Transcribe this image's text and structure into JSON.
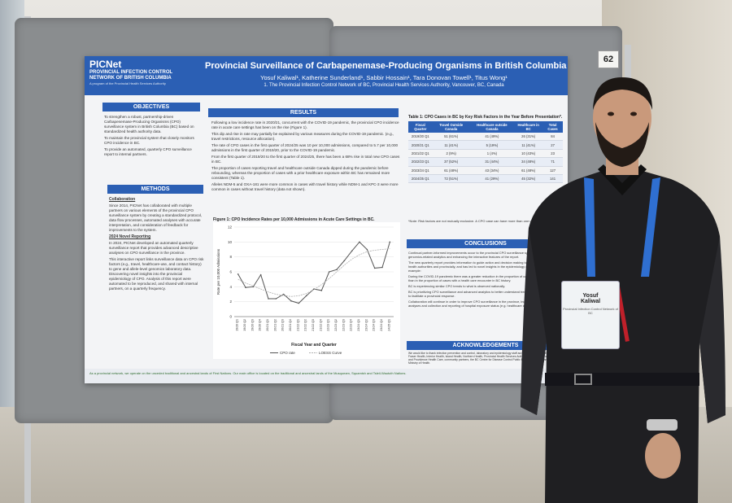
{
  "scene": {
    "board_number": "62"
  },
  "poster": {
    "logo": {
      "name": "PICNet",
      "line1": "PROVINCIAL INFECTION CONTROL",
      "line2": "NETWORK OF BRITISH COLUMBIA",
      "tag": "A program of the Provincial Health Services Authority"
    },
    "title": "Provincial Surveillance of Carbapenemase-Producing Organisms in British Columbia",
    "authors": "Yosuf Kaliwal¹, Katherine Sunderland¹, Sabbir Hossain¹, Tara Donovan Towell¹, Titus Wong¹",
    "affiliation": "1. The Provincial Infection Control Network of BC, Provincial Health Services Authority, Vancouver, BC, Canada",
    "objectives": {
      "heading": "OBJECTIVES",
      "items": [
        "To strengthen a robust, partnership-driven Carbapenemase-Producing Organisms (CPO) surveillance system in British Columbia (BC) based on standardized health authority data.",
        "To maintain the provincial system that closely monitors CPO incidence in BC.",
        "To provide an automated, quarterly CPO surveillance report to internal partners."
      ]
    },
    "methods": {
      "heading": "METHODS",
      "collab_head": "Collaboration",
      "collab_text": "Since 2014, PICNet has collaborated with multiple partners on various elements of the provincial CPO surveillance system by creating a standardized protocol, data flow processes, automated analyses with accurate interpretation, and consideration of feedback for improvements to the system.",
      "report_head": "2024 Novel Reporting",
      "report_text1": "In 2024, PICNet developed an automated quarterly surveillance report that provides advanced descriptive analyses on CPO surveillance in the province.",
      "report_text2": "This interactive report links surveillance data on CPO risk factors (e.g., travel, healthcare-use, and contact history) to gene and allele-level genomics laboratory data. Discovering novel insights into the provincial epidemiology of CPO. Analysis of this report were automated to be reproduced, and shared with internal partners, on a quarterly frequency."
    },
    "results": {
      "heading": "RESULTS",
      "items": [
        "Following a low incidence rate in 2020/21, concurrent with the COVID-19 pandemic, the provincial CPO incidence rate in acute care settings has been on the rise (Figure 1).",
        "This dip and rise in rate may partially be explained by various measures during the COVID-19 pandemic. (e.g., travel restrictions, resource allocation).",
        "The rate of CPO cases in the first quarter of 2024/25 was 10 per 10,000 admissions, compared to 5.7 per 10,000 admissions in the first quarter of 2019/20, prior to the COVID-19 pandemic.",
        "From the first quarter of 2019/20 to the first quarter of 2024/25, there has been a 68% rise in total new CPO cases in BC.",
        "The proportion of cases reporting travel and healthcare outside Canada dipped during the pandemic before rebounding, whereas the proportion of cases with a prior healthcare exposure within BC has remained more consistent (Table 1).",
        "Alleles NDM-5 and OXA-181 were more common in cases with travel history while NDM-1 and KPC-3 were more common in cases without travel history (data not shown)."
      ]
    },
    "figure_title": "Figure 1: CPO Incidence Rates per 10,000 Admissions in Acute Care Settings in BC.",
    "table": {
      "title": "Table 1: CPO Cases in BC by Key Risk Factors in the Year Before Presentation*.",
      "headers": [
        "Fiscal Quarter",
        "Travel Outside Canada",
        "Healthcare outside Canada",
        "Healthcare in BC",
        "Total Cases"
      ],
      "rows": [
        [
          "2019/20 Q1",
          "51 (61%)",
          "41 (49%)",
          "26 (31%)",
          "84"
        ],
        [
          "2020/21 Q1",
          "11 (41%)",
          "5 (19%)",
          "11 (41%)",
          "27"
        ],
        [
          "2021/22 Q1",
          "2 (9%)",
          "1 (4%)",
          "10 (43%)",
          "23"
        ],
        [
          "2022/23 Q1",
          "37 (52%)",
          "31 (44%)",
          "34 (48%)",
          "71"
        ],
        [
          "2023/24 Q1",
          "61 (48%)",
          "43 (34%)",
          "61 (48%)",
          "127"
        ],
        [
          "2024/25 Q1",
          "72 (51%)",
          "41 (29%)",
          "45 (32%)",
          "141"
        ]
      ],
      "note": "*Note: Risk factors are not mutually exclusive. A CPO case can have more than one risk factor."
    },
    "conclusions": {
      "heading": "CONCLUSIONS",
      "items": [
        "Continual partner-informed improvements occur to the provincial CPO surveillance system, such as adding genomics-related analytics and enhancing the interactive features of the report.",
        "The new quarterly report provides information to guide action and decision making to address CPO within health authorities and provincially, and has led to novel insights in the epidemiology of CPO in BC. For example:",
        "During the COVID-19 pandemic there was a greater reduction in the proportion of cases with travel history than in the proportion of cases with a health care encounter in BC history.",
        "BC is experiencing similar CPO trends to what is observed nationally.",
        "BC is prioritizing CPO surveillance and advanced analytics to better understand trends, and emerging trends, to facilitate a provincial response.",
        "Collaboration will continue in order to improve CPO surveillance in the province, including additional genomic analyses and collection and reporting of hospital exposure status (e.g. healthcare associated)."
      ]
    },
    "acknowledgements": {
      "heading": "ACKNOWLEDGEMENTS",
      "text": "We would like to thank infection prevention and control, laboratory and epidemiology staff across health authorities, including Fraser Health, Interior Health, Island Health, Northern Health, Provincial Health Services Authority, Vancouver Coastal Health, and Providence Health Care, community partners, the BC Centre for Disease Control Public Health Laboratory and the Ministry of Health."
    },
    "footer": "As a provincial network, we operate on the unceded traditional and ancestral lands of First Nations. Our main office is located on the traditional and ancestral lands of the Musqueam, Squamish and Tsleil-Waututh Nations."
  },
  "chart_data": {
    "type": "line",
    "title": "Figure 1: CPO Incidence Rates per 10,000 Admissions in Acute Care Settings in BC.",
    "xlabel": "Fiscal Year and Quarter",
    "ylabel": "Rate per 10,000 Admissions",
    "ylim": [
      0,
      12
    ],
    "yticks": [
      0,
      2,
      4,
      6,
      8,
      10,
      12
    ],
    "categories": [
      "19/20 Q1",
      "19/20 Q2",
      "19/20 Q3",
      "19/20 Q4",
      "20/21 Q1",
      "20/21 Q2",
      "20/21 Q3",
      "20/21 Q4",
      "21/22 Q1",
      "21/22 Q2",
      "21/22 Q3",
      "21/22 Q4",
      "22/23 Q1",
      "22/23 Q2",
      "22/23 Q3",
      "22/23 Q4",
      "23/24 Q1",
      "23/24 Q2",
      "23/24 Q3",
      "23/24 Q4",
      "24/25 Q1"
    ],
    "series": [
      {
        "name": "CPO rate",
        "values": [
          5.7,
          3.9,
          4.0,
          5.6,
          2.4,
          2.4,
          3.0,
          2.1,
          1.8,
          2.8,
          3.7,
          3.5,
          6.0,
          6.3,
          7.5,
          8.8,
          10.0,
          9.0,
          6.5,
          6.6,
          10.0
        ]
      },
      {
        "name": "LOESS Curve",
        "values": [
          5.0,
          4.5,
          4.1,
          3.7,
          3.3,
          3.0,
          2.8,
          2.7,
          2.8,
          3.1,
          3.6,
          4.3,
          5.1,
          6.0,
          6.9,
          7.7,
          8.3,
          8.7,
          8.9,
          9.0,
          9.1
        ]
      }
    ],
    "colors": {
      "rate": "#555555",
      "loess": "#b0b0b0"
    },
    "grid": true,
    "legend": "bottom"
  },
  "person_badge": {
    "name": "Yosuf",
    "surname": "Kaliwal",
    "org": "Provincial Infection Control Network of BC"
  }
}
